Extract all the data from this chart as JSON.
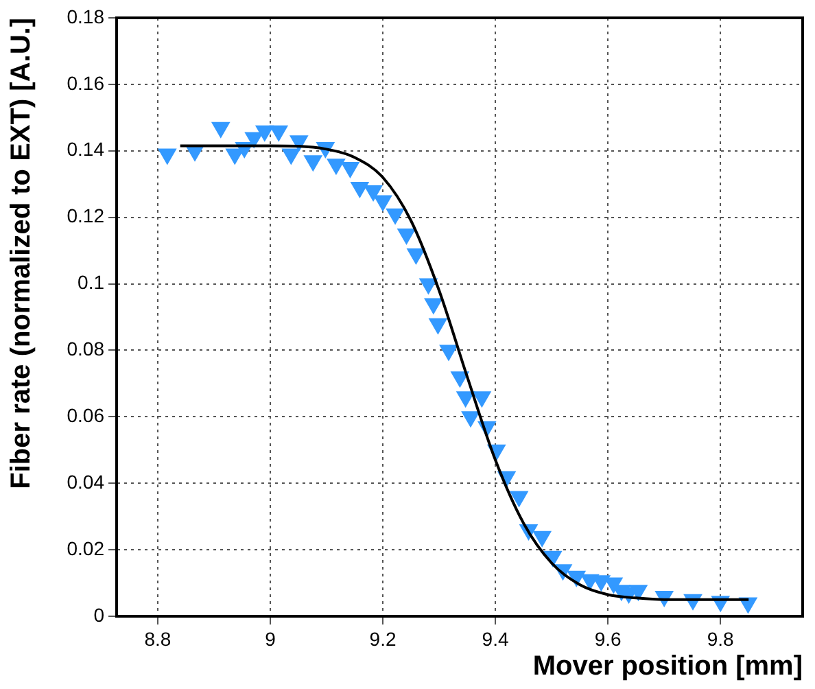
{
  "chart_data": {
    "type": "scatter",
    "xlabel": "Mover position [mm]",
    "ylabel": "Fiber rate (normalized to EXT) [A.U.]",
    "xlim": [
      8.727,
      9.946
    ],
    "xticks": [
      8.8,
      9,
      9.2,
      9.4,
      9.6,
      9.8
    ],
    "ylim": [
      0,
      0.18
    ],
    "yticks": [
      0,
      0.02,
      0.04,
      0.06,
      0.08,
      0.1,
      0.12,
      0.14,
      0.16,
      0.18
    ],
    "grid": true,
    "legend": false,
    "marker": "triangle",
    "series": [
      {
        "color": "#3399ff",
        "x": [
          8.817,
          8.866,
          8.912,
          8.937,
          8.954,
          8.971,
          8.99,
          9.015,
          9.037,
          9.051,
          9.076,
          9.098,
          9.117,
          9.142,
          9.159,
          9.183,
          9.2,
          9.222,
          9.242,
          9.259,
          9.281,
          9.29,
          9.298,
          9.317,
          9.337,
          9.347,
          9.356,
          9.376,
          9.385,
          9.402,
          9.42,
          9.442,
          9.459,
          9.483,
          9.502,
          9.52,
          9.544,
          9.568,
          9.588,
          9.61,
          9.624,
          9.637,
          9.654,
          9.7,
          9.751,
          9.8,
          9.849
        ],
        "values": [
          0.139,
          0.14,
          0.147,
          0.139,
          0.141,
          0.144,
          0.146,
          0.146,
          0.139,
          0.143,
          0.137,
          0.141,
          0.136,
          0.135,
          0.129,
          0.128,
          0.125,
          0.121,
          0.115,
          0.109,
          0.1,
          0.094,
          0.088,
          0.08,
          0.072,
          0.066,
          0.06,
          0.066,
          0.057,
          0.05,
          0.042,
          0.036,
          0.026,
          0.024,
          0.018,
          0.014,
          0.012,
          0.011,
          0.0107,
          0.01,
          0.0078,
          0.007,
          0.0078,
          0.006,
          0.005,
          0.0045,
          0.004
        ]
      },
      {
        "type": "line",
        "color": "#000000",
        "marker": "none",
        "x": [
          8.84,
          9.0,
          9.1,
          9.15,
          9.2,
          9.25,
          9.3,
          9.35,
          9.4,
          9.45,
          9.5,
          9.55,
          9.6,
          9.65,
          9.7,
          9.85
        ],
        "values": [
          0.1415,
          0.1415,
          0.1405,
          0.138,
          0.132,
          0.119,
          0.098,
          0.072,
          0.047,
          0.028,
          0.016,
          0.0095,
          0.0065,
          0.0055,
          0.005,
          0.005
        ]
      }
    ]
  }
}
